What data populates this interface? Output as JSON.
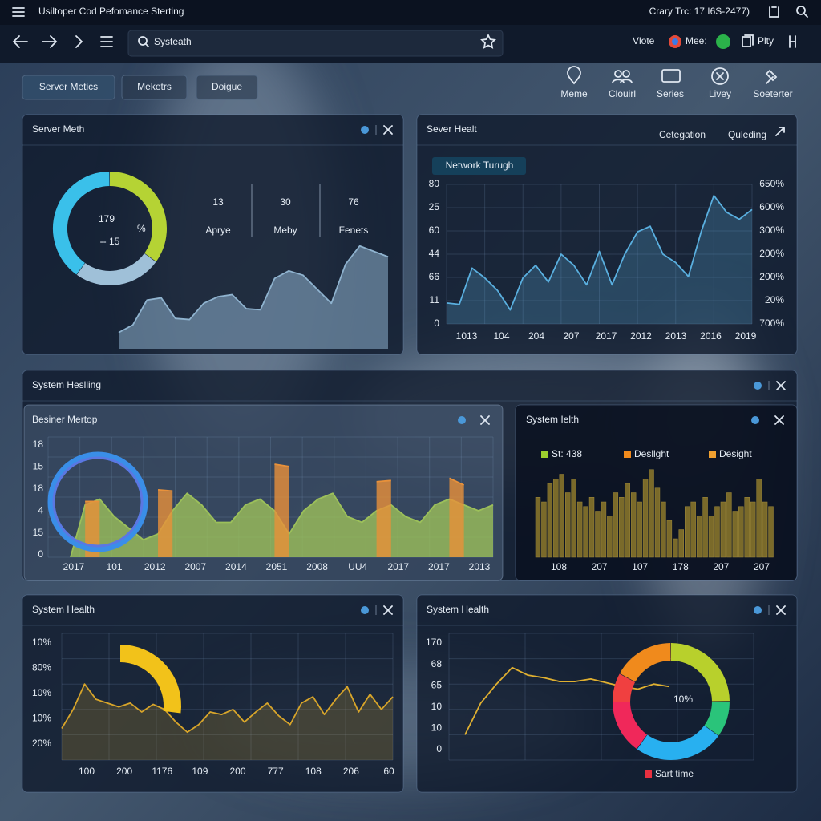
{
  "titlebar": {
    "title": "Usiltoper Cod Pefomance Sterting",
    "status": "Crary Trc: 17 I6S-2477)"
  },
  "navbar": {
    "search": "Systeath",
    "items": [
      "Vlote",
      "Mee:",
      "Plty"
    ]
  },
  "tabs": [
    "Server Metics",
    "Meketrs",
    "Doigue"
  ],
  "toolbar": [
    "Meme",
    "Clouirl",
    "Series",
    "Livey",
    "Soeterter"
  ],
  "server_metrics": {
    "title": "Server Meth",
    "donut": {
      "label": "179",
      "unit": "%",
      "caption": "-- 15",
      "segments": [
        {
          "color": "#b5d334",
          "value": 35
        },
        {
          "color": "#9fc0d8",
          "value": 25
        },
        {
          "color": "#3ac0ea",
          "value": 40
        }
      ]
    },
    "stats": [
      {
        "value": "13",
        "label": "Aprye"
      },
      {
        "value": "30",
        "label": "Meby"
      },
      {
        "value": "76",
        "label": "Fenets"
      }
    ],
    "area": {
      "color": "#8fb3cf",
      "ylim": [
        0,
        100
      ],
      "values": [
        15,
        22,
        45,
        47,
        28,
        27,
        42,
        48,
        50,
        37,
        36,
        65,
        72,
        68,
        55,
        42,
        78,
        95,
        90,
        85
      ]
    }
  },
  "server_health": {
    "title": "Sever Healt",
    "links": [
      "Cetegation",
      "Quleding"
    ],
    "badge": "Network Turugh",
    "y_labels": [
      "80",
      "25",
      "60",
      "44",
      "66",
      "11",
      "0"
    ],
    "y2_labels": [
      "650%",
      "600%",
      "300%",
      "200%",
      "200%",
      "20%",
      "700%"
    ],
    "x_labels": [
      "1013",
      "104",
      "204",
      "207",
      "2017",
      "2012",
      "2013",
      "2016",
      "2019"
    ],
    "line": {
      "color": "#5ab0e0",
      "ylim": [
        0,
        100
      ],
      "values": [
        15,
        14,
        40,
        33,
        24,
        10,
        33,
        42,
        30,
        50,
        42,
        28,
        52,
        28,
        50,
        66,
        70,
        50,
        44,
        34,
        66,
        92,
        80,
        75,
        82
      ]
    }
  },
  "system_healing": {
    "title": "System Heslling",
    "left": {
      "title": "Besiner Mertop",
      "y_labels": [
        "18",
        "15",
        "18",
        "4",
        "15",
        "0"
      ],
      "x_labels": [
        "2017",
        "101",
        "2012",
        "2007",
        "2014",
        "2051",
        "2008",
        "UU4",
        "2017",
        "2017",
        "2013"
      ],
      "ylim": [
        0,
        100
      ],
      "series": [
        {
          "color": "#9cc05a",
          "values": [
            0,
            45,
            50,
            35,
            25,
            15,
            20,
            40,
            55,
            45,
            30,
            30,
            45,
            50,
            40,
            20,
            40,
            50,
            55,
            35,
            30,
            40,
            45,
            35,
            30,
            45,
            50,
            45,
            40,
            45
          ]
        },
        {
          "color": "#e8913a",
          "values": [
            null,
            48,
            48,
            null,
            null,
            null,
            58,
            57,
            null,
            null,
            null,
            null,
            null,
            null,
            80,
            78,
            null,
            null,
            null,
            null,
            null,
            65,
            66,
            null,
            null,
            null,
            68,
            62,
            null,
            null
          ]
        }
      ]
    },
    "right": {
      "title": "System Ielth",
      "legend": [
        {
          "name": "St: 438",
          "color": "#9ccf2e"
        },
        {
          "name": "Desllght",
          "color": "#f08a1c"
        },
        {
          "name": "Desight",
          "color": "#f0a030"
        }
      ],
      "x_labels": [
        "108",
        "207",
        "107",
        "178",
        "207",
        "207"
      ],
      "bars": {
        "color": "#7a6a2a",
        "ylim": [
          0,
          100
        ],
        "values": [
          65,
          60,
          80,
          85,
          90,
          70,
          85,
          60,
          55,
          65,
          50,
          60,
          45,
          70,
          65,
          80,
          70,
          60,
          85,
          95,
          75,
          60,
          40,
          20,
          30,
          55,
          60,
          45,
          65,
          45,
          55,
          60,
          70,
          50,
          55,
          65,
          60,
          85,
          60,
          55
        ]
      }
    }
  },
  "health_a": {
    "title": "System Health",
    "y_labels": [
      "10%",
      "80%",
      "10%",
      "10%",
      "20%"
    ],
    "x_labels": [
      "100",
      "200",
      "1176",
      "109",
      "200",
      "777",
      "108",
      "206",
      "60"
    ],
    "gauge": {
      "color": "#f2c21a",
      "value": 27
    },
    "line": {
      "color": "#d8a52a",
      "ylim": [
        0,
        100
      ],
      "values": [
        25,
        40,
        60,
        48,
        45,
        42,
        45,
        38,
        44,
        40,
        30,
        22,
        28,
        38,
        36,
        40,
        30,
        38,
        45,
        35,
        28,
        45,
        50,
        36,
        48,
        58,
        38,
        52,
        40,
        50
      ]
    }
  },
  "health_b": {
    "title": "System Health",
    "y_labels": [
      "170",
      "68",
      "65",
      "10",
      "10",
      "0"
    ],
    "line": {
      "color": "#e0b030",
      "ylim": [
        0,
        100
      ],
      "values": [
        20,
        45,
        60,
        73,
        67,
        65,
        62,
        62,
        64,
        61,
        58,
        56,
        60,
        58
      ]
    },
    "donut": {
      "label": "10%",
      "segments": [
        {
          "color": "#b8d02c",
          "value": 25
        },
        {
          "color": "#2ac47a",
          "value": 10
        },
        {
          "color": "#28b0f0",
          "value": 25
        },
        {
          "color": "#f0285a",
          "value": 15
        },
        {
          "color": "#f04040",
          "value": 8
        },
        {
          "color": "#f08a1c",
          "value": 17
        }
      ]
    },
    "legend": {
      "name": "Sart time",
      "color": "#e83040"
    }
  }
}
